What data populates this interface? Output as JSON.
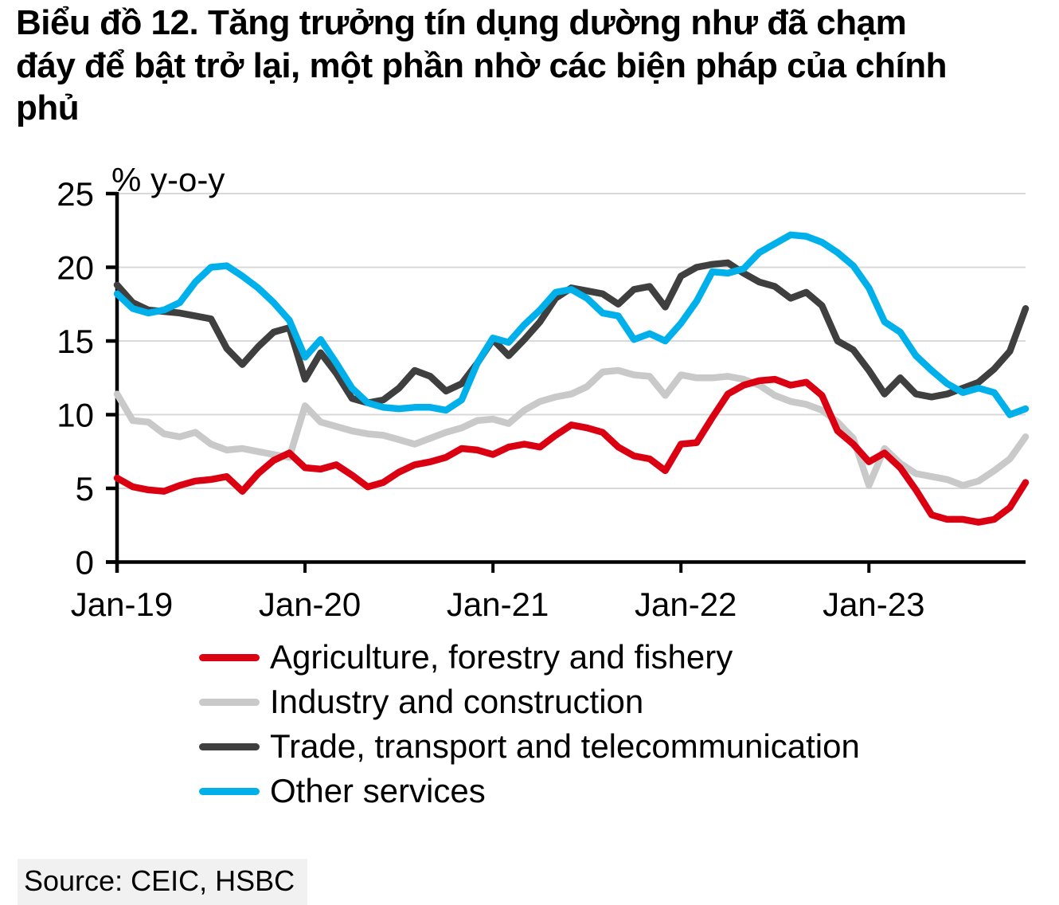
{
  "title": "Biểu đồ 12. Tăng trưởng tín dụng dường như đã chạm\nđáy để bật trở lại, một phần nhờ các biện pháp của chính\nphủ",
  "source": {
    "label": "Source: CEIC, HSBC"
  },
  "chart_data": {
    "type": "line",
    "unit_label": "% y-o-y",
    "x_range": "Jan-2019 to Nov-2023",
    "x_frequency": "monthly",
    "x_tick_labels": [
      "Jan-19",
      "Jan-20",
      "Jan-21",
      "Jan-22",
      "Jan-23"
    ],
    "x_tick_indices": [
      0,
      12,
      24,
      36,
      48
    ],
    "ylim": [
      0,
      25
    ],
    "y_ticks": [
      0,
      5,
      10,
      15,
      20,
      25
    ],
    "grid": "horizontal",
    "legend_position": "bottom",
    "axis_color": "#000000",
    "gridline_color": "#d9d9d9",
    "series": [
      {
        "name": "Agriculture, forestry and fishery",
        "color": "#db0011",
        "values": [
          5.7,
          5.1,
          4.9,
          4.8,
          5.2,
          5.5,
          5.6,
          5.8,
          4.8,
          6.0,
          6.9,
          7.4,
          6.4,
          6.3,
          6.6,
          5.9,
          5.1,
          5.4,
          6.1,
          6.6,
          6.8,
          7.1,
          7.7,
          7.6,
          7.3,
          7.8,
          8.0,
          7.8,
          8.6,
          9.3,
          9.1,
          8.8,
          7.8,
          7.2,
          7.0,
          6.2,
          8.0,
          8.1,
          9.8,
          11.4,
          12.0,
          12.3,
          12.4,
          12.0,
          12.2,
          11.3,
          8.9,
          8.0,
          6.8,
          7.4,
          6.4,
          4.9,
          3.2,
          2.9,
          2.9,
          2.7,
          2.9,
          3.7,
          5.4
        ]
      },
      {
        "name": "Industry and construction",
        "color": "#c9c9c9",
        "values": [
          11.4,
          9.6,
          9.5,
          8.7,
          8.5,
          8.8,
          8.0,
          7.6,
          7.7,
          7.5,
          7.3,
          7.1,
          10.6,
          9.5,
          9.2,
          8.9,
          8.7,
          8.6,
          8.3,
          8.0,
          8.4,
          8.8,
          9.1,
          9.6,
          9.7,
          9.4,
          10.3,
          10.9,
          11.2,
          11.4,
          11.9,
          12.9,
          13.0,
          12.7,
          12.6,
          11.3,
          12.7,
          12.5,
          12.5,
          12.6,
          12.4,
          12.0,
          11.3,
          10.9,
          10.7,
          10.3,
          9.5,
          8.4,
          5.2,
          7.7,
          6.7,
          6.0,
          5.8,
          5.6,
          5.2,
          5.5,
          6.2,
          7.0,
          8.5
        ]
      },
      {
        "name": "Trade, transport and telecommunication",
        "color": "#3f3f3f",
        "values": [
          18.8,
          17.6,
          17.1,
          17.0,
          16.9,
          16.7,
          16.5,
          14.5,
          13.4,
          14.6,
          15.6,
          15.9,
          12.4,
          14.2,
          12.8,
          11.1,
          10.8,
          11.0,
          11.8,
          13.0,
          12.6,
          11.6,
          12.1,
          13.5,
          15.1,
          14.0,
          15.1,
          16.3,
          17.9,
          18.6,
          18.4,
          18.2,
          17.5,
          18.5,
          18.7,
          17.3,
          19.4,
          20.0,
          20.2,
          20.3,
          19.6,
          19.0,
          18.7,
          17.9,
          18.3,
          17.4,
          15.0,
          14.4,
          13.0,
          11.4,
          12.5,
          11.4,
          11.2,
          11.4,
          11.8,
          12.2,
          13.1,
          14.3,
          17.2
        ]
      },
      {
        "name": "Other services",
        "color": "#00b0ea",
        "values": [
          18.2,
          17.2,
          16.9,
          17.1,
          17.6,
          19.0,
          20.0,
          20.1,
          19.4,
          18.6,
          17.6,
          16.4,
          13.9,
          15.1,
          13.5,
          11.8,
          10.8,
          10.5,
          10.4,
          10.5,
          10.5,
          10.3,
          11.0,
          13.5,
          15.2,
          14.9,
          16.1,
          17.1,
          18.3,
          18.5,
          17.9,
          16.9,
          16.7,
          15.1,
          15.5,
          15.0,
          16.2,
          17.7,
          19.7,
          19.6,
          19.9,
          21.0,
          21.6,
          22.2,
          22.1,
          21.7,
          21.0,
          20.1,
          18.6,
          16.3,
          15.6,
          14.0,
          13.0,
          12.1,
          11.5,
          11.8,
          11.5,
          10.0,
          10.4
        ]
      }
    ]
  }
}
